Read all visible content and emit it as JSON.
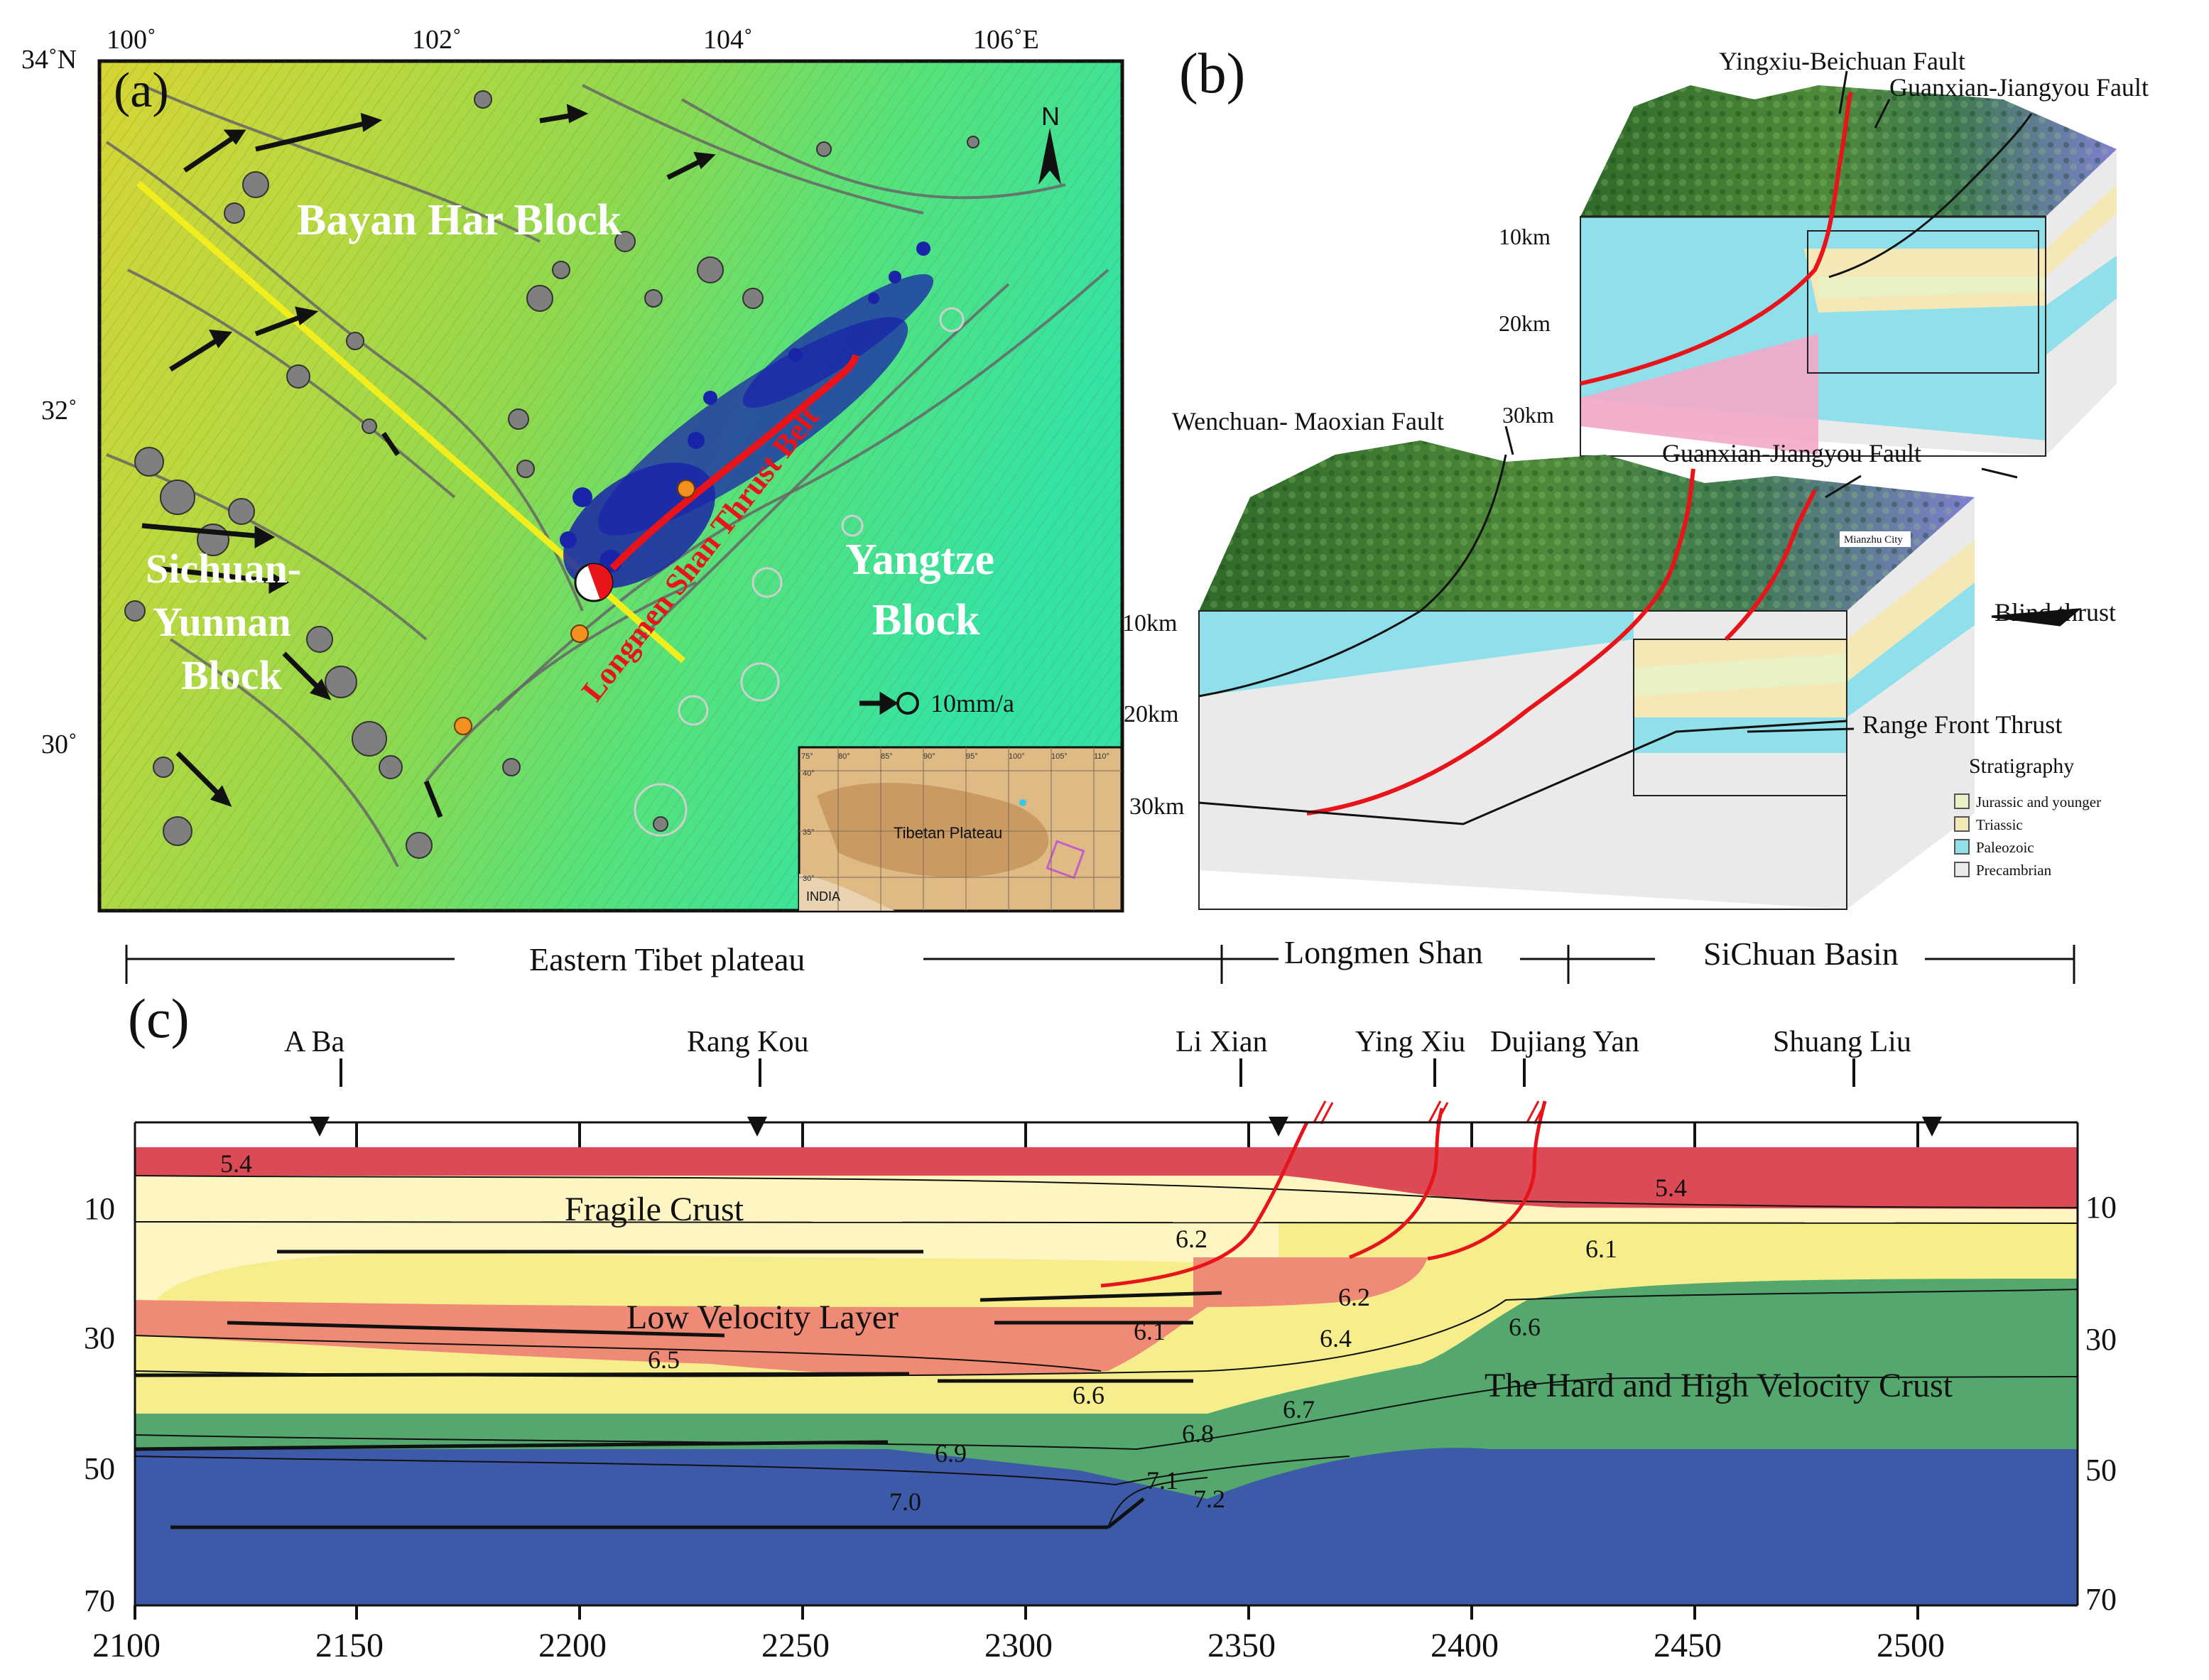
{
  "colors": {
    "fault_red": "#e8141a",
    "mainshock_blue": "#1a24a8",
    "aftershock_gray": "#7f7f7f",
    "gps_arrow": "#111111",
    "profile_yellow": "#f2ee1e",
    "fragile_crust": "#fdf6c2",
    "low_velocity": "#ef8a76",
    "high_velocity": "#54a86d",
    "upper_red": "#dc4a55",
    "mantle_blue": "#3c5aa8",
    "jurassic": "#e8f2c4",
    "triassic": "#f3e8b6",
    "paleozoic": "#8fe0ea",
    "precambrian": "#eaeaea"
  },
  "panel_a": {
    "label": "(a)",
    "lon_ticks": [
      "100˚",
      "102˚",
      "104˚",
      "106˚E"
    ],
    "lat_ticks": [
      "34˚N",
      "32˚",
      "30˚"
    ],
    "blocks": [
      "Bayan Har Block",
      "Sichuan-",
      "Yunnan",
      "Block",
      "Yangtze",
      "Block"
    ],
    "fault_label": "Longmen Shan Thrust Belt",
    "north": "N",
    "scale": "10mm/a",
    "inset": {
      "title": "Tibetan Plateau",
      "country": "INDIA",
      "lon_ticks": [
        "75°",
        "80°",
        "85°",
        "90°",
        "95°",
        "100°",
        "105°",
        "110°"
      ],
      "lat_ticks": [
        "40°",
        "35°",
        "30°"
      ]
    }
  },
  "panel_b": {
    "label": "(b)",
    "faults": [
      "Yingxiu-Beichuan Fault",
      "Guanxian-Jiangyou Fault",
      "Wenchuan- Maoxian Fault",
      "Guanxian-Jiangyou Fault",
      "Blind  thrust",
      "Range Front Thrust"
    ],
    "depths_upper": [
      "10km",
      "20km",
      "30km"
    ],
    "depths_lower": [
      "10km",
      "20km",
      "30km"
    ],
    "city": "Mianzhu City",
    "legend_title": "Stratigraphy",
    "legend": [
      "Jurassic and younger",
      "Triassic",
      "Paleozoic",
      "Precambrian"
    ]
  },
  "panel_c": {
    "label": "(c)",
    "regions": [
      "Eastern Tibet  plateau",
      "Longmen Shan",
      "SiChuan Basin"
    ],
    "stations": [
      "A Ba",
      "Rang Kou",
      "Li Xian",
      "Ying Xiu",
      "Dujiang Yan",
      "Shuang Liu"
    ],
    "layers": [
      "Fragile Crust",
      "Low Velocity Layer",
      "The Hard and High Velocity Crust"
    ],
    "velocities": [
      "5.4",
      "5.4",
      "6.2",
      "6.1",
      "6.2",
      "6.1",
      "6.4",
      "6.5",
      "6.6",
      "6.6",
      "6.7",
      "6.8",
      "6.9",
      "7.1",
      "7.0",
      "7.2"
    ],
    "depth_ticks": [
      "10",
      "30",
      "50",
      "70"
    ],
    "x_ticks": [
      "2100",
      "2150",
      "2200",
      "2250",
      "2300",
      "2350",
      "2400",
      "2450",
      "2500"
    ]
  }
}
